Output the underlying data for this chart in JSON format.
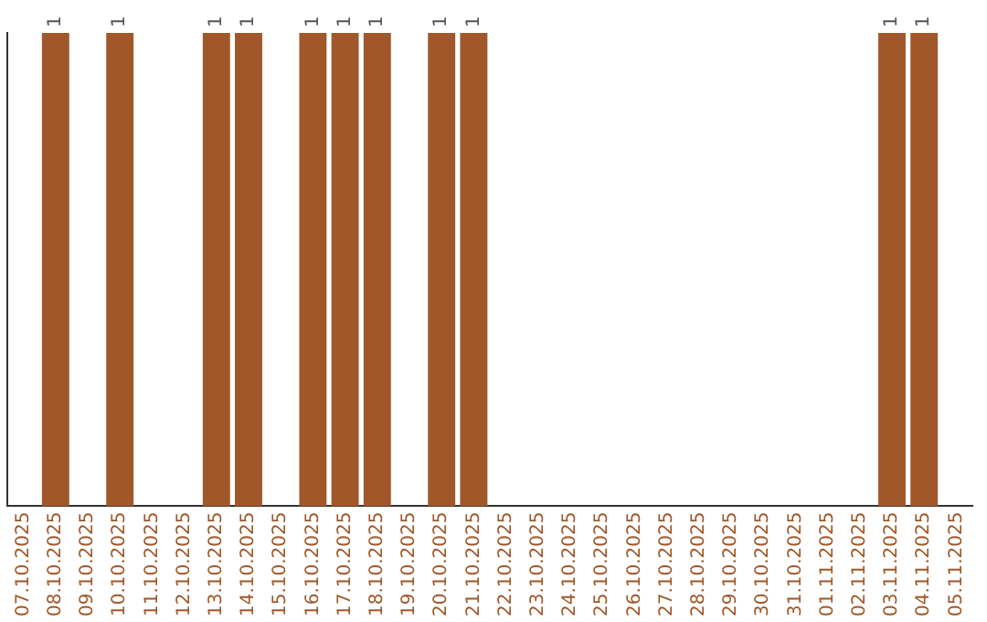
{
  "chart_data": {
    "type": "bar",
    "categories": [
      "07.10.2025",
      "08.10.2025",
      "09.10.2025",
      "10.10.2025",
      "11.10.2025",
      "12.10.2025",
      "13.10.2025",
      "14.10.2025",
      "15.10.2025",
      "16.10.2025",
      "17.10.2025",
      "18.10.2025",
      "19.10.2025",
      "20.10.2025",
      "21.10.2025",
      "22.10.2025",
      "23.10.2025",
      "24.10.2025",
      "25.10.2025",
      "26.10.2025",
      "27.10.2025",
      "28.10.2025",
      "29.10.2025",
      "30.10.2025",
      "31.10.2025",
      "01.11.2025",
      "02.11.2025",
      "03.11.2025",
      "04.11.2025",
      "05.11.2025"
    ],
    "values": [
      0,
      1,
      0,
      1,
      0,
      0,
      1,
      1,
      0,
      1,
      1,
      1,
      0,
      1,
      1,
      0,
      0,
      0,
      0,
      0,
      0,
      0,
      0,
      0,
      0,
      0,
      0,
      1,
      1,
      0
    ],
    "value_labels": [
      null,
      "1",
      null,
      "1",
      null,
      null,
      "1",
      "1",
      null,
      "1",
      "1",
      "1",
      null,
      "1",
      "1",
      null,
      null,
      null,
      null,
      null,
      null,
      null,
      null,
      null,
      null,
      null,
      null,
      "1",
      "1",
      null
    ],
    "color": "#a0582a",
    "tick_labels": "x",
    "grid": false,
    "legend": false
  }
}
